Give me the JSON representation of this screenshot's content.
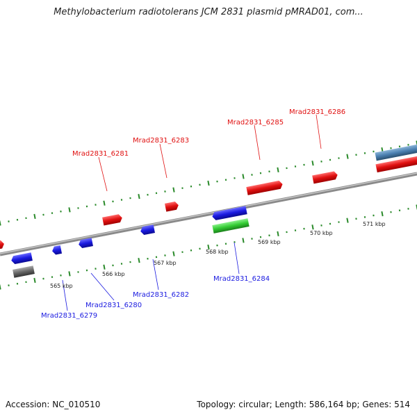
{
  "title": "Methylobacterium radiotolerans JCM 2831 plasmid pMRAD01, com...",
  "footer": {
    "accession": "Accession: NC_010510",
    "summary": "Topology: circular; Length: 586,164 bp; Genes: 514"
  },
  "colors": {
    "forward_gene": "#e01010",
    "reverse_gene": "#1a1ae0",
    "highlight_gene": "#33cc33",
    "other_gene": "#666666",
    "rna_gene": "#4a7fb0",
    "tick": "#2a8a2a"
  },
  "scale_labels": [
    "565 kbp",
    "566 kbp",
    "567 kbp",
    "568 kbp",
    "569 kbp",
    "570 kbp",
    "571 kbp"
  ],
  "gene_labels_forward": [
    "Mrad2831_6281",
    "Mrad2831_6283",
    "Mrad2831_6285",
    "Mrad2831_6286"
  ],
  "gene_labels_reverse": [
    "Mrad2831_6279",
    "Mrad2831_6280",
    "Mrad2831_6282",
    "Mrad2831_6284"
  ]
}
